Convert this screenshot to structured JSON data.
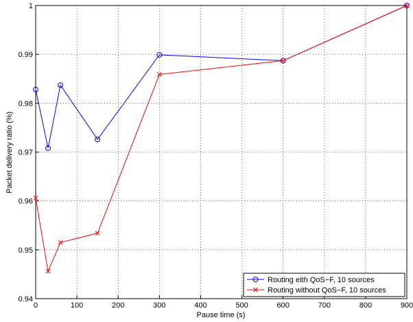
{
  "chart_data": {
    "type": "line",
    "xlabel": "Pause time (s)",
    "ylabel": "Packet delivery ratio (%)",
    "series": [
      {
        "name": "Routing eith QoS−F, 10 sources",
        "color": "#0000ff",
        "marker": "circle",
        "x": [
          0,
          30,
          60,
          150,
          300,
          600,
          900
        ],
        "values": [
          0.9828,
          0.9708,
          0.9837,
          0.9726,
          0.9899,
          0.9887,
          1.0
        ]
      },
      {
        "name": "Routing without QoS−F, 10 sources",
        "color": "#ff0000",
        "marker": "x",
        "x": [
          0,
          30,
          60,
          150,
          300,
          600,
          900
        ],
        "values": [
          0.9606,
          0.9456,
          0.9515,
          0.9534,
          0.9859,
          0.9887,
          1.0
        ]
      }
    ],
    "xlim": [
      0,
      900
    ],
    "xticks": [
      0,
      100,
      200,
      300,
      400,
      500,
      600,
      700,
      800,
      900
    ],
    "ylim": [
      0.94,
      1
    ],
    "yticks": [
      0.94,
      0.95,
      0.96,
      0.97,
      0.98,
      0.99,
      1
    ],
    "grid": true,
    "legend": "lower right"
  }
}
